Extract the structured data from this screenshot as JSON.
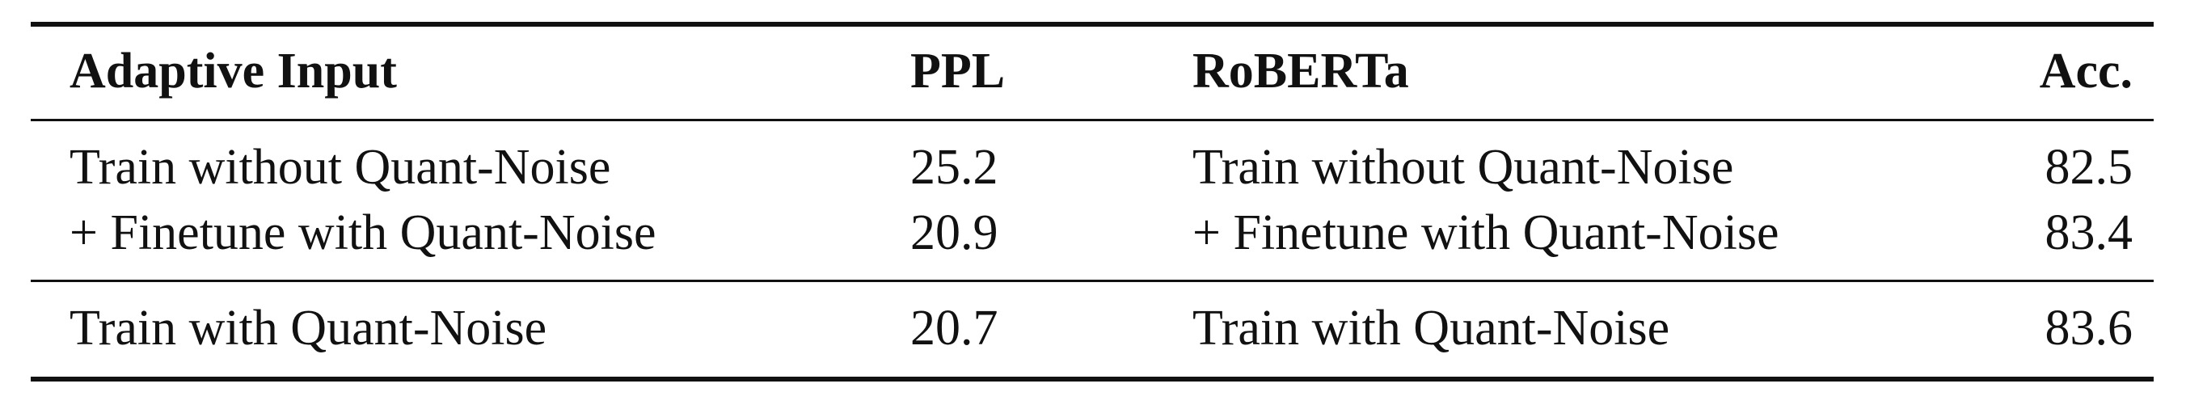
{
  "table": {
    "headers": {
      "adaptive_input": "Adaptive Input",
      "ppl": "PPL",
      "roberta": "RoBERTa",
      "acc": "Acc."
    },
    "rows": [
      {
        "left_label": "Train without Quant-Noise",
        "ppl": "25.2",
        "right_label": "Train without Quant-Noise",
        "acc": "82.5"
      },
      {
        "left_label": "+ Finetune with Quant-Noise",
        "ppl": "20.9",
        "right_label": "+ Finetune with Quant-Noise",
        "acc": "83.4"
      },
      {
        "left_label": "Train with Quant-Noise",
        "ppl": "20.7",
        "right_label": "Train with Quant-Noise",
        "acc": "83.6"
      }
    ]
  }
}
